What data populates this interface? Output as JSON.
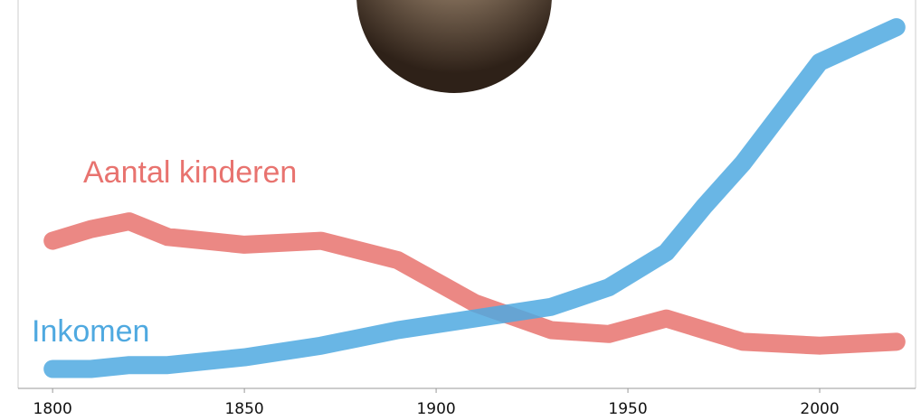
{
  "chart_data": {
    "type": "line",
    "x": [
      1800,
      1810,
      1820,
      1830,
      1850,
      1870,
      1890,
      1910,
      1930,
      1945,
      1960,
      1970,
      1980,
      2000,
      2020
    ],
    "series": [
      {
        "name": "Aantal kinderen",
        "color": "#e8736f",
        "values": [
          38,
          41,
          43,
          39,
          37,
          38,
          33,
          22,
          15,
          14,
          18,
          15,
          12,
          11,
          12
        ]
      },
      {
        "name": "Inkomen",
        "color": "#4fa9e0",
        "values": [
          5,
          5,
          6,
          6,
          8,
          11,
          15,
          18,
          21,
          26,
          35,
          47,
          58,
          84,
          93
        ]
      }
    ],
    "xlim": [
      1791,
      2025
    ],
    "xticks": [
      1800,
      1850,
      1900,
      1950,
      2000
    ],
    "ylim": [
      0,
      100
    ]
  }
}
